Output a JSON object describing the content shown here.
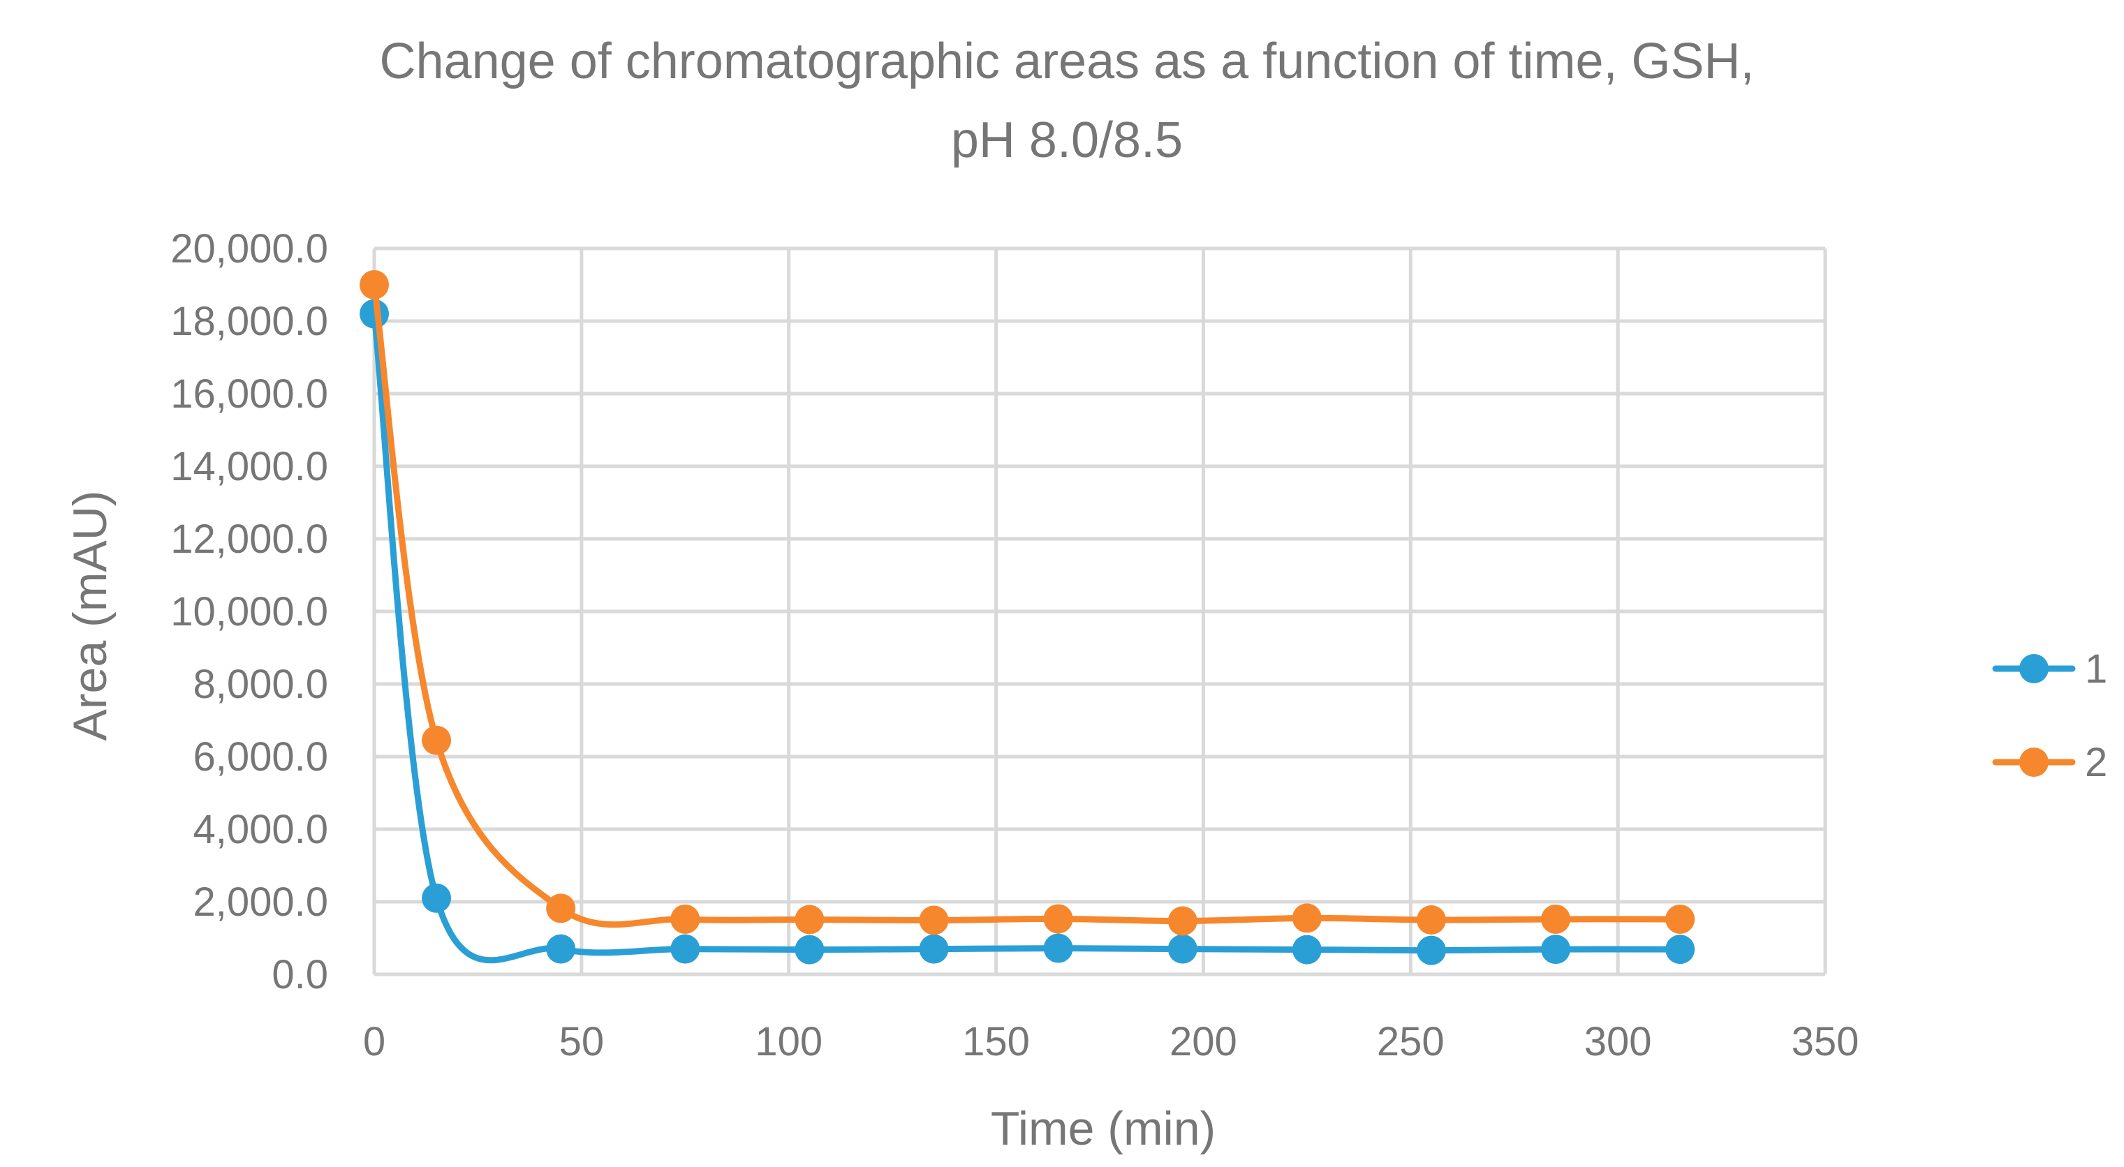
{
  "chart_data": {
    "type": "line",
    "title_line1": "Change of chromatographic areas as a function of time, GSH,",
    "title_line2": "pH 8.0/8.5",
    "xlabel": "Time (min)",
    "ylabel": "Area (mAU)",
    "xlim": [
      0,
      350
    ],
    "ylim": [
      0,
      20000
    ],
    "x_ticks": [
      "0",
      "50",
      "100",
      "150",
      "200",
      "250",
      "300",
      "350"
    ],
    "y_ticks": [
      "0.0",
      "2,000.0",
      "4,000.0",
      "6,000.0",
      "8,000.0",
      "10,000.0",
      "12,000.0",
      "14,000.0",
      "16,000.0",
      "18,000.0",
      "20,000.0"
    ],
    "grid": true,
    "legend_position": "right",
    "smooth": true,
    "x": [
      0,
      15,
      45,
      75,
      105,
      135,
      165,
      195,
      225,
      255,
      285,
      315
    ],
    "series": [
      {
        "name": "1",
        "color": "#2a9fd6",
        "values": [
          18200,
          2100,
          700,
          700,
          680,
          700,
          720,
          700,
          680,
          660,
          690,
          690
        ]
      },
      {
        "name": "2",
        "color": "#f7872d",
        "values": [
          19000,
          6450,
          1820,
          1520,
          1510,
          1490,
          1530,
          1470,
          1550,
          1500,
          1520,
          1520
        ]
      }
    ]
  }
}
